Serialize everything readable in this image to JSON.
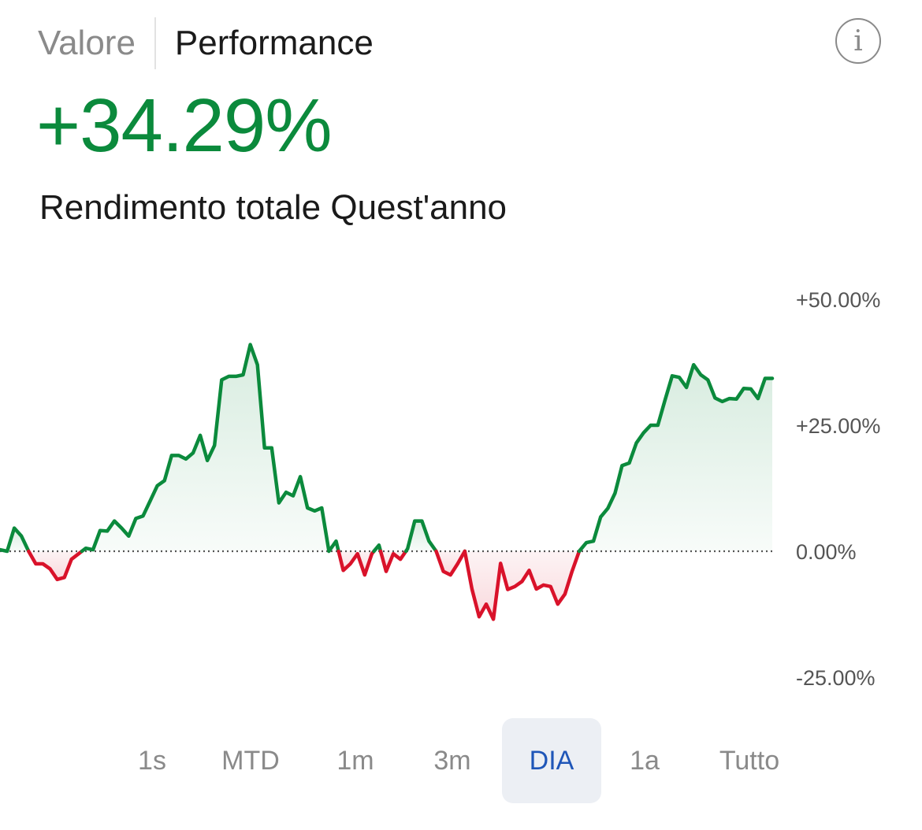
{
  "tabs": {
    "value_label": "Valore",
    "performance_label": "Performance"
  },
  "info_icon": "info-icon",
  "headline": {
    "value": "+34.29%",
    "color": "#0b8a3c",
    "subtitle": "Rendimento totale Quest'anno"
  },
  "colors": {
    "positive": "#0b8a3c",
    "negative": "#d9122a",
    "selected": "#1f56b8"
  },
  "periods": [
    "1s",
    "MTD",
    "1m",
    "3m",
    "DIA",
    "1a",
    "Tutto"
  ],
  "selected_period": "DIA",
  "chart_data": {
    "type": "area",
    "title": "",
    "xlabel": "",
    "ylabel": "",
    "ylim": [
      -31,
      50
    ],
    "baseline": 0,
    "y_ticks": [
      50,
      25,
      0,
      -25
    ],
    "y_tick_labels": [
      "+50.00%",
      "+25.00%",
      "0.00%",
      "-25.00%"
    ],
    "grid": false,
    "series": [
      {
        "values": [
          0.3,
          0,
          4.6,
          3,
          0,
          -2.5,
          -2.5,
          -3.5,
          -5.6,
          -5.2,
          -1.6,
          -0.5,
          0.6,
          0.3,
          4.1,
          4,
          6,
          4.6,
          3,
          6.5,
          7,
          10,
          13,
          14,
          19,
          19,
          18.3,
          19.5,
          23,
          18,
          21,
          34,
          34.7,
          34.7,
          35,
          41,
          37,
          20.5,
          20.5,
          9.6,
          11.7,
          11,
          14.8,
          8.6,
          8,
          8.6,
          0,
          2,
          -3.8,
          -2.5,
          -0.5,
          -4.7,
          -0.5,
          1.2,
          -4,
          -0.5,
          -1.6,
          0.5,
          6,
          6,
          2,
          0,
          -4,
          -4.7,
          -2.5,
          0,
          -7.5,
          -13,
          -10.5,
          -13.5,
          -2.4,
          -7.6,
          -7,
          -6,
          -3.8,
          -7.5,
          -6.7,
          -7,
          -10.5,
          -8.5,
          -4,
          0,
          1.7,
          2,
          6.8,
          8.5,
          11.5,
          17,
          17.5,
          21.5,
          23.5,
          25,
          25,
          30,
          34.8,
          34.5,
          32.5,
          37,
          35,
          34,
          30.4,
          29.7,
          30.3,
          30.2,
          32.3,
          32.2,
          30.3,
          34.3,
          34.3
        ]
      }
    ]
  }
}
